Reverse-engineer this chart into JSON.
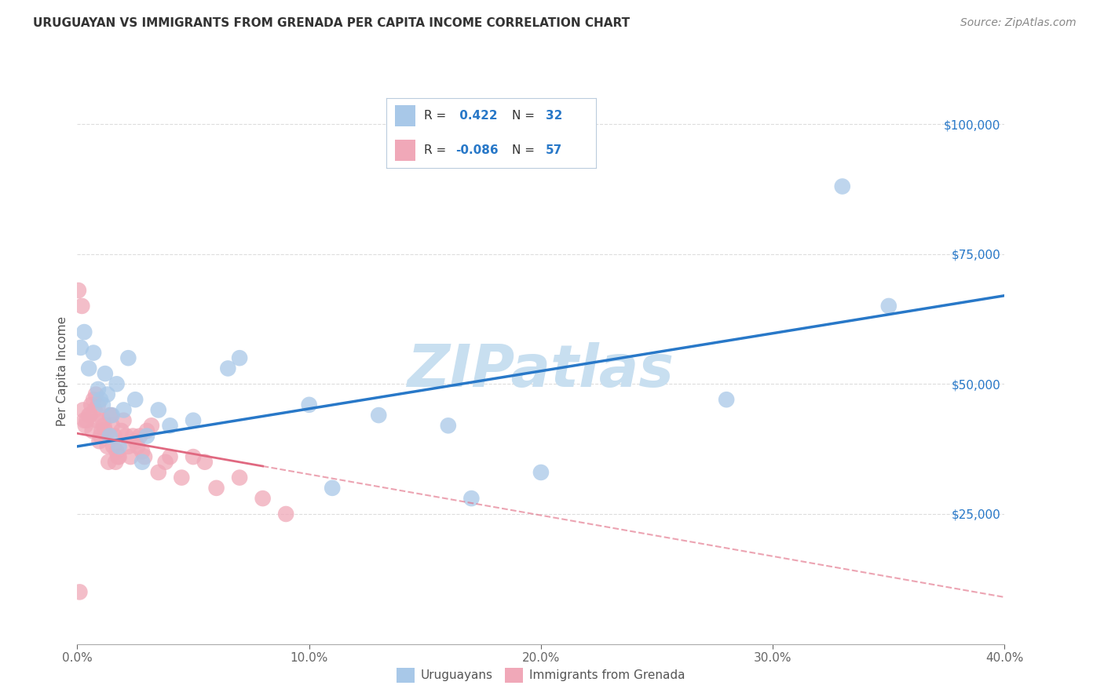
{
  "title": "URUGUAYAN VS IMMIGRANTS FROM GRENADA PER CAPITA INCOME CORRELATION CHART",
  "source": "Source: ZipAtlas.com",
  "ylabel": "Per Capita Income",
  "xlabel_ticks": [
    "0.0%",
    "10.0%",
    "20.0%",
    "30.0%",
    "40.0%"
  ],
  "xlabel_vals": [
    0.0,
    10.0,
    20.0,
    30.0,
    40.0
  ],
  "ytick_labels": [
    "$25,000",
    "$50,000",
    "$75,000",
    "$100,000"
  ],
  "ytick_vals": [
    25000,
    50000,
    75000,
    100000
  ],
  "blue_label": "Uruguayans",
  "pink_label": "Immigrants from Grenada",
  "blue_R": 0.422,
  "blue_N": 32,
  "pink_R": -0.086,
  "pink_N": 57,
  "blue_color": "#a8c8e8",
  "blue_line_color": "#2878c8",
  "pink_color": "#f0a8b8",
  "pink_line_color": "#e06880",
  "watermark": "ZIPatlas",
  "watermark_color": "#c8dff0",
  "background_color": "#ffffff",
  "blue_x": [
    0.15,
    0.3,
    0.5,
    0.7,
    0.9,
    1.0,
    1.1,
    1.2,
    1.3,
    1.5,
    1.7,
    2.0,
    2.2,
    2.5,
    3.0,
    3.5,
    4.0,
    5.0,
    6.5,
    7.0,
    10.0,
    11.0,
    13.0,
    16.0,
    17.0,
    20.0,
    28.0,
    33.0,
    1.4,
    1.8,
    2.8,
    35.0
  ],
  "blue_y": [
    57000,
    60000,
    53000,
    56000,
    49000,
    47000,
    46000,
    52000,
    48000,
    44000,
    50000,
    45000,
    55000,
    47000,
    40000,
    45000,
    42000,
    43000,
    53000,
    55000,
    46000,
    30000,
    44000,
    42000,
    28000,
    33000,
    47000,
    88000,
    40000,
    38000,
    35000,
    65000
  ],
  "pink_x": [
    0.05,
    0.1,
    0.2,
    0.3,
    0.4,
    0.5,
    0.6,
    0.7,
    0.8,
    0.9,
    1.0,
    1.1,
    1.2,
    1.3,
    1.4,
    1.5,
    1.6,
    1.7,
    1.8,
    1.9,
    2.0,
    2.1,
    2.2,
    2.3,
    2.4,
    2.5,
    2.6,
    2.7,
    2.8,
    2.9,
    3.0,
    3.2,
    3.5,
    3.8,
    4.0,
    4.5,
    5.0,
    5.5,
    6.0,
    7.0,
    8.0,
    9.0,
    0.25,
    0.35,
    0.55,
    0.65,
    0.75,
    0.85,
    0.95,
    1.05,
    1.15,
    1.25,
    1.35,
    1.45,
    1.55,
    1.65,
    1.75
  ],
  "pink_y": [
    68000,
    10000,
    65000,
    43000,
    43000,
    44000,
    46000,
    47000,
    48000,
    46000,
    40000,
    43000,
    41000,
    38000,
    44000,
    42000,
    40000,
    37000,
    36000,
    41000,
    43000,
    40000,
    38000,
    36000,
    40000,
    39000,
    38000,
    40000,
    37000,
    36000,
    41000,
    42000,
    33000,
    35000,
    36000,
    32000,
    36000,
    35000,
    30000,
    32000,
    28000,
    25000,
    45000,
    42000,
    44000,
    41000,
    45000,
    43000,
    39000,
    41000,
    42000,
    40000,
    35000,
    44000,
    38000,
    35000,
    36000
  ],
  "xlim": [
    0,
    40
  ],
  "ylim": [
    0,
    105000
  ],
  "blue_line_x0": 0,
  "blue_line_y0": 38000,
  "blue_line_x1": 40,
  "blue_line_y1": 67000,
  "pink_line_x0": 0,
  "pink_line_y0": 40500,
  "pink_line_x1": 40,
  "pink_line_y1": 9000,
  "pink_solid_end_x": 8,
  "title_fontsize": 11,
  "axis_label_color": "#555555",
  "tick_color": "#666666",
  "grid_color": "#dddddd",
  "ytick_color": "#2878c8",
  "legend_box_color": "#e8f0f8",
  "legend_text_color": "#333333",
  "legend_n_color": "#2878c8"
}
